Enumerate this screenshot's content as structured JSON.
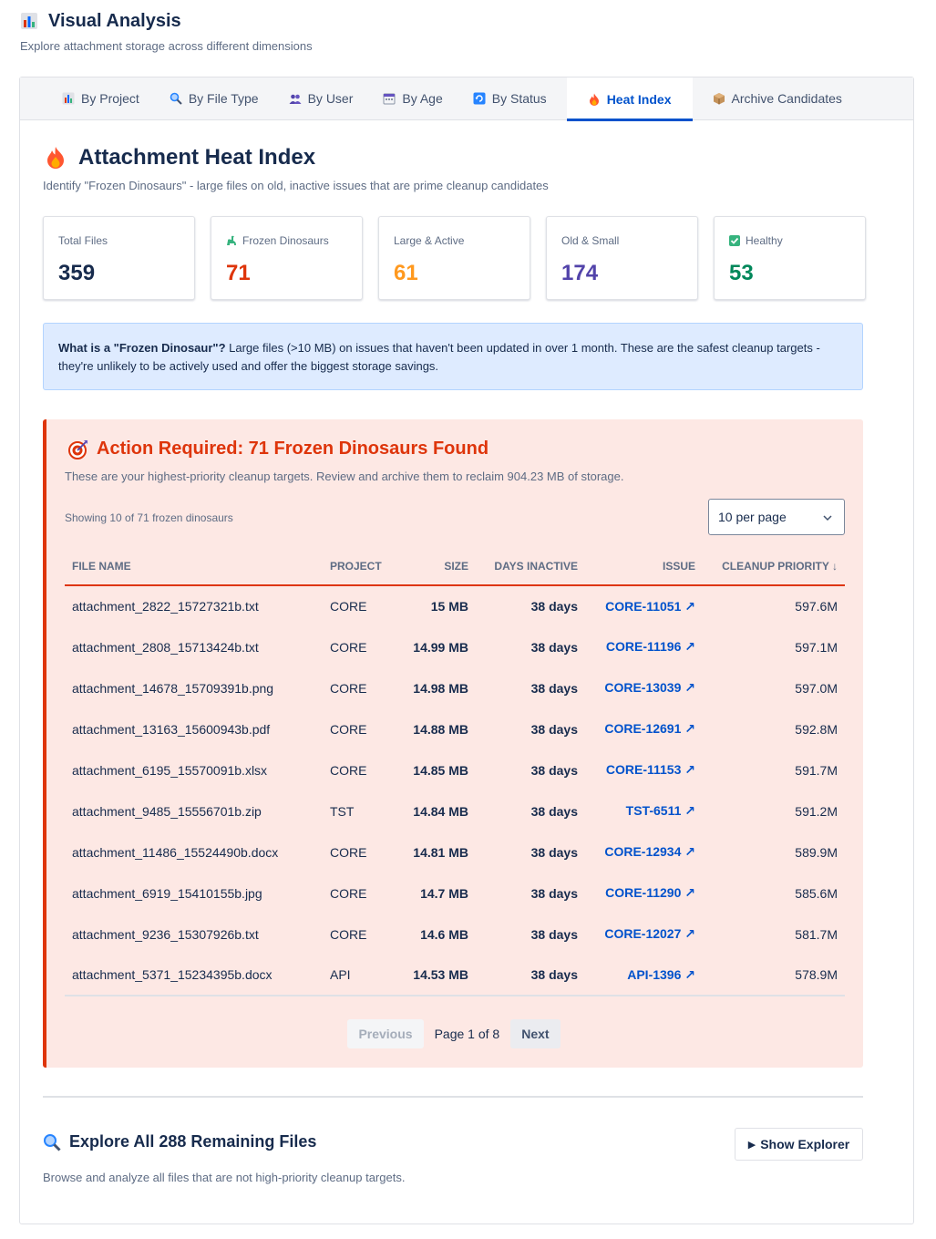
{
  "page": {
    "title": "Visual Analysis",
    "subtitle": "Explore attachment storage across different dimensions"
  },
  "tabs": [
    {
      "label": "By Project",
      "icon": "bar-chart-icon"
    },
    {
      "label": "By File Type",
      "icon": "magnifier-icon"
    },
    {
      "label": "By User",
      "icon": "users-icon"
    },
    {
      "label": "By Age",
      "icon": "calendar-icon"
    },
    {
      "label": "By Status",
      "icon": "refresh-icon"
    },
    {
      "label": "Heat Index",
      "icon": "fire-icon",
      "active": true
    },
    {
      "label": "Archive Candidates",
      "icon": "package-icon"
    }
  ],
  "heat": {
    "title": "Attachment Heat Index",
    "subtitle": "Identify \"Frozen Dinosaurs\" - large files on old, inactive issues that are prime cleanup candidates"
  },
  "stats": [
    {
      "label": "Total Files",
      "value": "359",
      "color": "#172b4d"
    },
    {
      "label": "Frozen Dinosaurs",
      "value": "71",
      "color": "#de350b",
      "icon": "sauropod-icon"
    },
    {
      "label": "Large & Active",
      "value": "61",
      "color": "#ff991f"
    },
    {
      "label": "Old & Small",
      "value": "174",
      "color": "#5243aa"
    },
    {
      "label": "Healthy",
      "value": "53",
      "color": "#00875a",
      "icon": "check-box-icon"
    }
  ],
  "info": {
    "bold": "What is a \"Frozen Dinosaur\"?",
    "text": " Large files (>10 MB) on issues that haven't been updated in over 1 month. These are the safest cleanup targets - they're unlikely to be actively used and offer the biggest storage savings."
  },
  "alert": {
    "title": "Action Required: 71 Frozen Dinosaurs Found",
    "subtitle": "These are your highest-priority cleanup targets. Review and archive them to reclaim 904.23 MB of storage.",
    "showing": "Showing 10 of 71 frozen dinosaurs",
    "per_page": "10 per page"
  },
  "table": {
    "columns": [
      "File Name",
      "Project",
      "Size",
      "Days Inactive",
      "Issue",
      "Cleanup Priority ↓"
    ],
    "rows": [
      {
        "name": "attachment_2822_15727321b.txt",
        "project": "CORE",
        "size": "15 MB",
        "days": "38 days",
        "issue": "CORE-11051 ↗",
        "priority": "597.6M"
      },
      {
        "name": "attachment_2808_15713424b.txt",
        "project": "CORE",
        "size": "14.99 MB",
        "days": "38 days",
        "issue": "CORE-11196 ↗",
        "priority": "597.1M"
      },
      {
        "name": "attachment_14678_15709391b.png",
        "project": "CORE",
        "size": "14.98 MB",
        "days": "38 days",
        "issue": "CORE-13039 ↗",
        "priority": "597.0M"
      },
      {
        "name": "attachment_13163_15600943b.pdf",
        "project": "CORE",
        "size": "14.88 MB",
        "days": "38 days",
        "issue": "CORE-12691 ↗",
        "priority": "592.8M"
      },
      {
        "name": "attachment_6195_15570091b.xlsx",
        "project": "CORE",
        "size": "14.85 MB",
        "days": "38 days",
        "issue": "CORE-11153 ↗",
        "priority": "591.7M"
      },
      {
        "name": "attachment_9485_15556701b.zip",
        "project": "TST",
        "size": "14.84 MB",
        "days": "38 days",
        "issue": "TST-6511 ↗",
        "priority": "591.2M"
      },
      {
        "name": "attachment_11486_15524490b.docx",
        "project": "CORE",
        "size": "14.81 MB",
        "days": "38 days",
        "issue": "CORE-12934 ↗",
        "priority": "589.9M"
      },
      {
        "name": "attachment_6919_15410155b.jpg",
        "project": "CORE",
        "size": "14.7 MB",
        "days": "38 days",
        "issue": "CORE-11290 ↗",
        "priority": "585.6M"
      },
      {
        "name": "attachment_9236_15307926b.txt",
        "project": "CORE",
        "size": "14.6 MB",
        "days": "38 days",
        "issue": "CORE-12027 ↗",
        "priority": "581.7M"
      },
      {
        "name": "attachment_5371_15234395b.docx",
        "project": "API",
        "size": "14.53 MB",
        "days": "38 days",
        "issue": "API-1396 ↗",
        "priority": "578.9M"
      }
    ]
  },
  "pagination": {
    "prev": "Previous",
    "info": "Page 1 of 8",
    "next": "Next"
  },
  "explore": {
    "title": "Explore All 288 Remaining Files",
    "subtitle": "Browse and analyze all files that are not high-priority cleanup targets.",
    "button": "Show Explorer"
  }
}
